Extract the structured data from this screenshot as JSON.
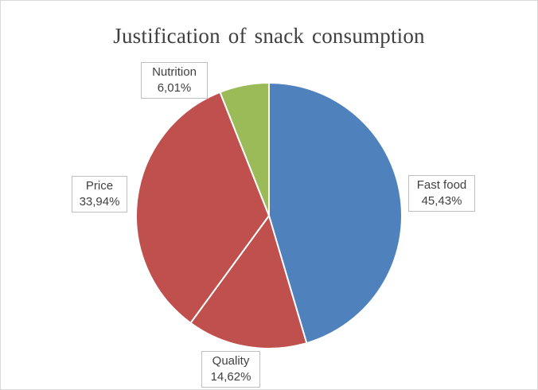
{
  "chart_data": {
    "type": "pie",
    "title": "Justification of snack consumption",
    "categories": [
      "Fast food",
      "Quality",
      "Price",
      "Nutrition"
    ],
    "values": [
      45.43,
      14.62,
      33.94,
      6.01
    ],
    "value_labels": [
      "45,43%",
      "14,62%",
      "33,94%",
      "6,01%"
    ],
    "colors": [
      "#4f81bd",
      "#c0504d",
      "#c0504d",
      "#9bbb59"
    ],
    "start_angle_deg": 0,
    "direction": "clockwise",
    "legend": "none"
  }
}
